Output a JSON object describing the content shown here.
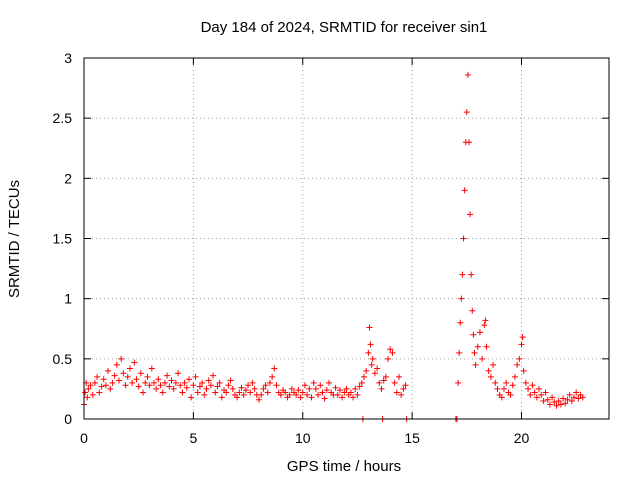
{
  "chart_data": {
    "type": "scatter",
    "title": "Day 184 of 2024, SRMTID for receiver sin1",
    "xlabel": "GPS time / hours",
    "ylabel": "SRMTID / TECUs",
    "xlim": [
      0,
      24
    ],
    "ylim": [
      0,
      3
    ],
    "xticks": [
      0,
      5,
      10,
      15,
      20
    ],
    "xtick_labels": [
      "0",
      "5",
      "10",
      "15",
      "20"
    ],
    "yticks": [
      0,
      0.5,
      1,
      1.5,
      2,
      2.5,
      3
    ],
    "ytick_labels": [
      "0",
      "0.5",
      "1",
      "1.5",
      "2",
      "2.5",
      "3"
    ],
    "grid": true,
    "marker": "+",
    "series": [
      {
        "name": "sin1",
        "color": "#ff0000",
        "points": [
          [
            0.0,
            0.12
          ],
          [
            0.05,
            0.22
          ],
          [
            0.1,
            0.3
          ],
          [
            0.15,
            0.18
          ],
          [
            0.2,
            0.25
          ],
          [
            0.3,
            0.28
          ],
          [
            0.4,
            0.2
          ],
          [
            0.5,
            0.3
          ],
          [
            0.6,
            0.35
          ],
          [
            0.7,
            0.22
          ],
          [
            0.8,
            0.27
          ],
          [
            0.9,
            0.33
          ],
          [
            1.0,
            0.28
          ],
          [
            1.1,
            0.4
          ],
          [
            1.2,
            0.25
          ],
          [
            1.3,
            0.3
          ],
          [
            1.4,
            0.36
          ],
          [
            1.5,
            0.45
          ],
          [
            1.6,
            0.32
          ],
          [
            1.7,
            0.5
          ],
          [
            1.8,
            0.38
          ],
          [
            1.9,
            0.28
          ],
          [
            2.0,
            0.35
          ],
          [
            2.1,
            0.42
          ],
          [
            2.2,
            0.3
          ],
          [
            2.3,
            0.47
          ],
          [
            2.4,
            0.33
          ],
          [
            2.5,
            0.27
          ],
          [
            2.6,
            0.38
          ],
          [
            2.7,
            0.22
          ],
          [
            2.8,
            0.3
          ],
          [
            2.9,
            0.35
          ],
          [
            3.0,
            0.28
          ],
          [
            3.1,
            0.42
          ],
          [
            3.2,
            0.3
          ],
          [
            3.3,
            0.25
          ],
          [
            3.4,
            0.33
          ],
          [
            3.5,
            0.28
          ],
          [
            3.6,
            0.22
          ],
          [
            3.7,
            0.3
          ],
          [
            3.8,
            0.36
          ],
          [
            3.9,
            0.27
          ],
          [
            4.0,
            0.32
          ],
          [
            4.1,
            0.25
          ],
          [
            4.2,
            0.3
          ],
          [
            4.3,
            0.38
          ],
          [
            4.4,
            0.28
          ],
          [
            4.5,
            0.22
          ],
          [
            4.6,
            0.3
          ],
          [
            4.7,
            0.26
          ],
          [
            4.8,
            0.33
          ],
          [
            4.9,
            0.18
          ],
          [
            5.0,
            0.28
          ],
          [
            5.1,
            0.35
          ],
          [
            5.2,
            0.22
          ],
          [
            5.3,
            0.27
          ],
          [
            5.4,
            0.3
          ],
          [
            5.5,
            0.2
          ],
          [
            5.6,
            0.25
          ],
          [
            5.7,
            0.32
          ],
          [
            5.8,
            0.28
          ],
          [
            5.9,
            0.36
          ],
          [
            6.0,
            0.22
          ],
          [
            6.1,
            0.27
          ],
          [
            6.2,
            0.3
          ],
          [
            6.3,
            0.18
          ],
          [
            6.4,
            0.24
          ],
          [
            6.5,
            0.22
          ],
          [
            6.6,
            0.28
          ],
          [
            6.7,
            0.32
          ],
          [
            6.8,
            0.25
          ],
          [
            6.9,
            0.2
          ],
          [
            7.0,
            0.18
          ],
          [
            7.1,
            0.22
          ],
          [
            7.2,
            0.26
          ],
          [
            7.3,
            0.2
          ],
          [
            7.4,
            0.24
          ],
          [
            7.5,
            0.28
          ],
          [
            7.6,
            0.22
          ],
          [
            7.7,
            0.3
          ],
          [
            7.8,
            0.25
          ],
          [
            7.9,
            0.2
          ],
          [
            8.0,
            0.16
          ],
          [
            8.1,
            0.2
          ],
          [
            8.2,
            0.25
          ],
          [
            8.3,
            0.28
          ],
          [
            8.4,
            0.22
          ],
          [
            8.5,
            0.3
          ],
          [
            8.6,
            0.35
          ],
          [
            8.7,
            0.42
          ],
          [
            8.8,
            0.28
          ],
          [
            8.9,
            0.22
          ],
          [
            9.0,
            0.2
          ],
          [
            9.1,
            0.24
          ],
          [
            9.2,
            0.22
          ],
          [
            9.3,
            0.18
          ],
          [
            9.4,
            0.2
          ],
          [
            9.5,
            0.25
          ],
          [
            9.6,
            0.22
          ],
          [
            9.7,
            0.2
          ],
          [
            9.8,
            0.24
          ],
          [
            9.9,
            0.18
          ],
          [
            10.0,
            0.22
          ],
          [
            10.1,
            0.28
          ],
          [
            10.2,
            0.2
          ],
          [
            10.3,
            0.25
          ],
          [
            10.4,
            0.18
          ],
          [
            10.5,
            0.3
          ],
          [
            10.6,
            0.25
          ],
          [
            10.7,
            0.2
          ],
          [
            10.8,
            0.28
          ],
          [
            10.9,
            0.22
          ],
          [
            11.0,
            0.17
          ],
          [
            11.1,
            0.24
          ],
          [
            11.2,
            0.3
          ],
          [
            11.3,
            0.22
          ],
          [
            11.4,
            0.2
          ],
          [
            11.5,
            0.26
          ],
          [
            11.6,
            0.2
          ],
          [
            11.7,
            0.24
          ],
          [
            11.8,
            0.18
          ],
          [
            11.9,
            0.22
          ],
          [
            12.0,
            0.25
          ],
          [
            12.1,
            0.2
          ],
          [
            12.2,
            0.22
          ],
          [
            12.3,
            0.18
          ],
          [
            12.4,
            0.25
          ],
          [
            12.5,
            0.2
          ],
          [
            12.6,
            0.27
          ],
          [
            12.7,
            0.3
          ],
          [
            12.75,
            0.0
          ],
          [
            12.8,
            0.35
          ],
          [
            12.9,
            0.4
          ],
          [
            13.0,
            0.55
          ],
          [
            13.05,
            0.76
          ],
          [
            13.1,
            0.62
          ],
          [
            13.15,
            0.45
          ],
          [
            13.2,
            0.5
          ],
          [
            13.3,
            0.38
          ],
          [
            13.4,
            0.42
          ],
          [
            13.5,
            0.3
          ],
          [
            13.6,
            0.25
          ],
          [
            13.65,
            0.0
          ],
          [
            13.7,
            0.32
          ],
          [
            13.8,
            0.35
          ],
          [
            13.9,
            0.5
          ],
          [
            14.0,
            0.58
          ],
          [
            14.1,
            0.55
          ],
          [
            14.2,
            0.3
          ],
          [
            14.3,
            0.22
          ],
          [
            14.4,
            0.35
          ],
          [
            14.5,
            0.2
          ],
          [
            14.6,
            0.25
          ],
          [
            14.7,
            0.28
          ],
          [
            14.75,
            0.0
          ],
          [
            17.0,
            0.0
          ],
          [
            17.05,
            0.0
          ],
          [
            17.1,
            0.3
          ],
          [
            17.15,
            0.55
          ],
          [
            17.2,
            0.8
          ],
          [
            17.25,
            1.0
          ],
          [
            17.3,
            1.2
          ],
          [
            17.35,
            1.5
          ],
          [
            17.4,
            1.9
          ],
          [
            17.45,
            2.3
          ],
          [
            17.5,
            2.55
          ],
          [
            17.55,
            2.86
          ],
          [
            17.6,
            2.3
          ],
          [
            17.65,
            1.7
          ],
          [
            17.7,
            1.2
          ],
          [
            17.75,
            0.9
          ],
          [
            17.8,
            0.7
          ],
          [
            17.85,
            0.55
          ],
          [
            17.9,
            0.45
          ],
          [
            18.0,
            0.6
          ],
          [
            18.1,
            0.72
          ],
          [
            18.2,
            0.5
          ],
          [
            18.3,
            0.78
          ],
          [
            18.35,
            0.82
          ],
          [
            18.4,
            0.6
          ],
          [
            18.5,
            0.4
          ],
          [
            18.6,
            0.35
          ],
          [
            18.7,
            0.45
          ],
          [
            18.8,
            0.3
          ],
          [
            18.9,
            0.25
          ],
          [
            19.0,
            0.2
          ],
          [
            19.1,
            0.18
          ],
          [
            19.2,
            0.25
          ],
          [
            19.3,
            0.3
          ],
          [
            19.4,
            0.22
          ],
          [
            19.5,
            0.2
          ],
          [
            19.6,
            0.28
          ],
          [
            19.7,
            0.35
          ],
          [
            19.8,
            0.45
          ],
          [
            19.9,
            0.5
          ],
          [
            20.0,
            0.62
          ],
          [
            20.05,
            0.68
          ],
          [
            20.1,
            0.4
          ],
          [
            20.2,
            0.3
          ],
          [
            20.3,
            0.25
          ],
          [
            20.4,
            0.2
          ],
          [
            20.5,
            0.28
          ],
          [
            20.6,
            0.22
          ],
          [
            20.7,
            0.18
          ],
          [
            20.8,
            0.25
          ],
          [
            20.9,
            0.2
          ],
          [
            21.0,
            0.15
          ],
          [
            21.1,
            0.22
          ],
          [
            21.2,
            0.16
          ],
          [
            21.3,
            0.12
          ],
          [
            21.4,
            0.18
          ],
          [
            21.5,
            0.14
          ],
          [
            21.6,
            0.11
          ],
          [
            21.7,
            0.15
          ],
          [
            21.8,
            0.12
          ],
          [
            21.9,
            0.17
          ],
          [
            22.0,
            0.13
          ],
          [
            22.1,
            0.16
          ],
          [
            22.2,
            0.2
          ],
          [
            22.3,
            0.15
          ],
          [
            22.4,
            0.18
          ],
          [
            22.5,
            0.22
          ],
          [
            22.6,
            0.17
          ],
          [
            22.7,
            0.2
          ],
          [
            22.8,
            0.18
          ]
        ]
      }
    ]
  }
}
